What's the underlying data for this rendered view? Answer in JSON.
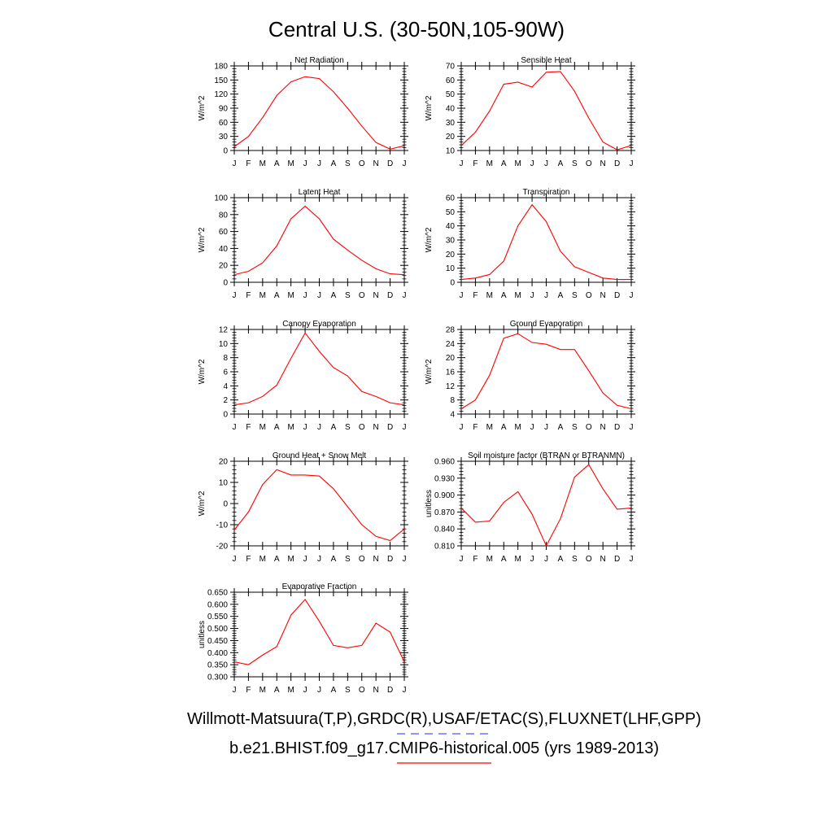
{
  "page": {
    "title": "Central U.S. (30-50N,105-90W)",
    "legend": [
      {
        "label": "Willmott-Matsuura(T,P),GRDC(R),USAF/ETAC(S),FLUXNET(LHF,GPP)",
        "color": "#5555ff",
        "style": "dashed"
      },
      {
        "label": "b.e21.BHIST.f09_g17.CMIP6-historical.005 (yrs 1989-2013)",
        "color": "#ff0000",
        "style": "solid"
      }
    ]
  },
  "chart_data": [
    {
      "type": "line",
      "title": "Net Radiation",
      "ylabel": "W/m^2",
      "categories": [
        "J",
        "F",
        "M",
        "A",
        "M",
        "J",
        "J",
        "A",
        "S",
        "O",
        "N",
        "D",
        "J"
      ],
      "yticks": [
        0,
        30,
        60,
        90,
        120,
        150,
        180
      ],
      "ylim": [
        0,
        180
      ],
      "tick_decimals": 0,
      "series": [
        {
          "color": "#ff0000",
          "values": [
            8,
            30,
            70,
            117,
            146,
            157,
            153,
            125,
            90,
            52,
            17,
            3,
            10
          ]
        }
      ]
    },
    {
      "type": "line",
      "title": "Sensible Heat",
      "ylabel": "W/m^2",
      "categories": [
        "J",
        "F",
        "M",
        "A",
        "M",
        "J",
        "J",
        "A",
        "S",
        "O",
        "N",
        "D",
        "J"
      ],
      "yticks": [
        10,
        20,
        30,
        40,
        50,
        60,
        70
      ],
      "ylim": [
        10,
        70
      ],
      "tick_decimals": 0,
      "series": [
        {
          "color": "#ff0000",
          "values": [
            13.5,
            23,
            38,
            57,
            58.5,
            55,
            65.5,
            66,
            52,
            33,
            16,
            10.5,
            13.5
          ]
        }
      ]
    },
    {
      "type": "line",
      "title": "Latent Heat",
      "ylabel": "W/m^2",
      "categories": [
        "J",
        "F",
        "M",
        "A",
        "M",
        "J",
        "J",
        "A",
        "S",
        "O",
        "N",
        "D",
        "J"
      ],
      "yticks": [
        0,
        20,
        40,
        60,
        80,
        100
      ],
      "ylim": [
        0,
        100
      ],
      "tick_decimals": 0,
      "series": [
        {
          "color": "#ff0000",
          "values": [
            9,
            13,
            23,
            43,
            75,
            90,
            75,
            51,
            38,
            26,
            16,
            10,
            9
          ]
        }
      ]
    },
    {
      "type": "line",
      "title": "Transpiration",
      "ylabel": "W/m^2",
      "categories": [
        "J",
        "F",
        "M",
        "A",
        "M",
        "J",
        "J",
        "A",
        "S",
        "O",
        "N",
        "D",
        "J"
      ],
      "yticks": [
        0,
        10,
        20,
        30,
        40,
        50,
        60
      ],
      "ylim": [
        0,
        60
      ],
      "tick_decimals": 0,
      "series": [
        {
          "color": "#ff0000",
          "values": [
            2,
            3,
            5.5,
            15,
            40,
            55,
            43,
            22,
            11,
            7,
            3,
            2,
            2
          ]
        }
      ]
    },
    {
      "type": "line",
      "title": "Canopy Evaporation",
      "ylabel": "W/m^2",
      "categories": [
        "J",
        "F",
        "M",
        "A",
        "M",
        "J",
        "J",
        "A",
        "S",
        "O",
        "N",
        "D",
        "J"
      ],
      "yticks": [
        0,
        2,
        4,
        6,
        8,
        10,
        12
      ],
      "ylim": [
        0,
        12
      ],
      "tick_decimals": 0,
      "series": [
        {
          "color": "#ff0000",
          "values": [
            1.3,
            1.6,
            2.5,
            4.1,
            7.9,
            11.5,
            8.9,
            6.6,
            5.4,
            3.2,
            2.5,
            1.6,
            1.3
          ]
        }
      ]
    },
    {
      "type": "line",
      "title": "Ground Evaporation",
      "ylabel": "W/m^2",
      "categories": [
        "J",
        "F",
        "M",
        "A",
        "M",
        "J",
        "J",
        "A",
        "S",
        "O",
        "N",
        "D",
        "J"
      ],
      "yticks": [
        4,
        8,
        12,
        16,
        20,
        24,
        28
      ],
      "ylim": [
        4,
        28
      ],
      "tick_decimals": 0,
      "series": [
        {
          "color": "#ff0000",
          "values": [
            5.5,
            8,
            15,
            25.5,
            26.8,
            24.3,
            23.8,
            22.3,
            22.3,
            16.3,
            10,
            6.5,
            5.5
          ]
        }
      ]
    },
    {
      "type": "line",
      "title": "Ground Heat + Snow Melt",
      "ylabel": "W/m^2",
      "categories": [
        "J",
        "F",
        "M",
        "A",
        "M",
        "J",
        "J",
        "A",
        "S",
        "O",
        "N",
        "D",
        "J"
      ],
      "yticks": [
        -20,
        -10,
        0,
        10,
        20
      ],
      "ylim": [
        -20,
        20
      ],
      "tick_decimals": 0,
      "series": [
        {
          "color": "#ff0000",
          "values": [
            -12.5,
            -4,
            9,
            16,
            13.5,
            13.5,
            13,
            7,
            -1.5,
            -10,
            -15.5,
            -17.5,
            -12
          ]
        }
      ]
    },
    {
      "type": "line",
      "title": "Soil moisture factor (BTRAN or BTRANMN)",
      "ylabel": "unitless",
      "categories": [
        "J",
        "F",
        "M",
        "A",
        "M",
        "J",
        "J",
        "A",
        "S",
        "O",
        "N",
        "D",
        "J"
      ],
      "yticks": [
        0.81,
        0.84,
        0.87,
        0.9,
        0.93,
        0.96
      ],
      "ylim": [
        0.81,
        0.96
      ],
      "tick_decimals": 3,
      "series": [
        {
          "color": "#ff0000",
          "values": [
            0.877,
            0.852,
            0.854,
            0.887,
            0.906,
            0.866,
            0.81,
            0.858,
            0.932,
            0.954,
            0.911,
            0.875,
            0.877
          ]
        }
      ]
    },
    {
      "type": "line",
      "title": "Evaporative Fraction",
      "ylabel": "unitless",
      "categories": [
        "J",
        "F",
        "M",
        "A",
        "M",
        "J",
        "J",
        "A",
        "S",
        "O",
        "N",
        "D",
        "J"
      ],
      "yticks": [
        0.3,
        0.35,
        0.4,
        0.45,
        0.5,
        0.55,
        0.6,
        0.65
      ],
      "ylim": [
        0.3,
        0.65
      ],
      "tick_decimals": 3,
      "series": [
        {
          "color": "#ff0000",
          "values": [
            0.362,
            0.35,
            0.39,
            0.425,
            0.555,
            0.62,
            0.53,
            0.43,
            0.42,
            0.43,
            0.522,
            0.485,
            0.362
          ]
        }
      ]
    }
  ]
}
